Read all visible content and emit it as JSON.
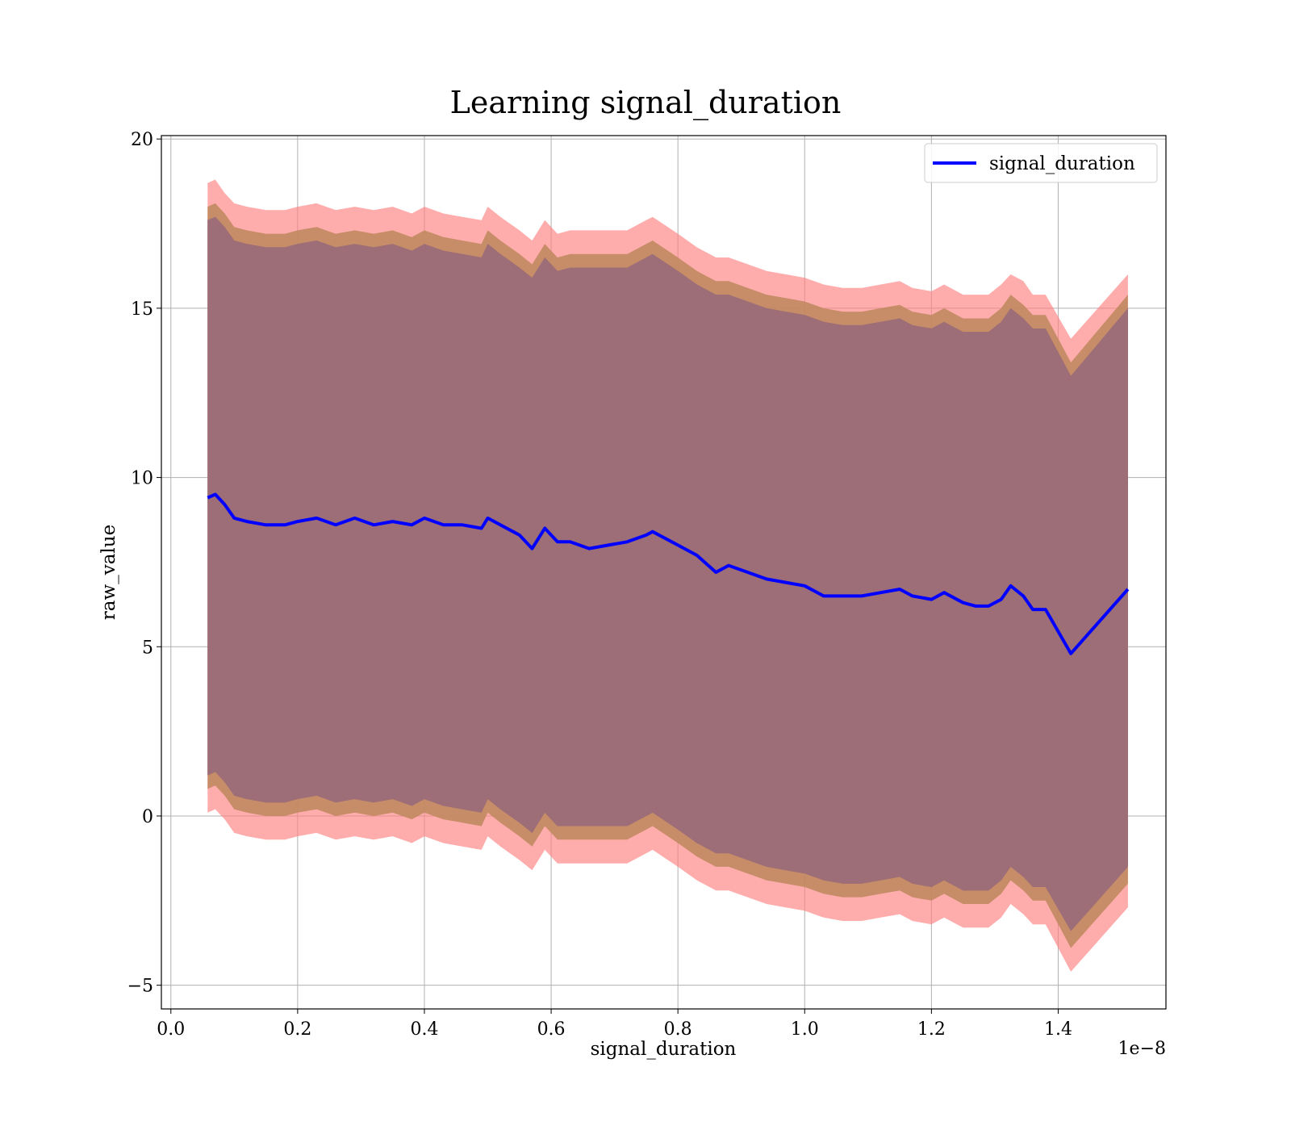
{
  "chart_data": {
    "type": "line",
    "title": "Learning signal_duration",
    "xlabel": "signal_duration",
    "ylabel": "raw_value",
    "x_offset_label": "1e−8",
    "xlim": [
      -0.015,
      1.57
    ],
    "ylim": [
      -5.7,
      20.1
    ],
    "x_ticks": [
      0.0,
      0.2,
      0.4,
      0.6,
      0.8,
      1.0,
      1.2,
      1.4
    ],
    "x_tick_labels": [
      "0.0",
      "0.2",
      "0.4",
      "0.6",
      "0.8",
      "1.0",
      "1.2",
      "1.4"
    ],
    "y_ticks": [
      -5,
      0,
      5,
      10,
      15,
      20
    ],
    "y_tick_labels": [
      "−5",
      "0",
      "5",
      "10",
      "15",
      "20"
    ],
    "grid": true,
    "legend_position": "top-right",
    "colors": {
      "line": "#0000ff",
      "band_outer": "#ff8080",
      "band_middle": "#c08a60",
      "band_inner": "#8a6078",
      "band_core": "#a07078"
    },
    "series": [
      {
        "name": "signal_duration",
        "x": [
          0.058,
          0.07,
          0.085,
          0.1,
          0.12,
          0.15,
          0.18,
          0.2,
          0.23,
          0.26,
          0.29,
          0.32,
          0.35,
          0.38,
          0.4,
          0.43,
          0.46,
          0.49,
          0.5,
          0.52,
          0.55,
          0.57,
          0.59,
          0.61,
          0.63,
          0.66,
          0.69,
          0.72,
          0.75,
          0.76,
          0.8,
          0.83,
          0.86,
          0.88,
          0.91,
          0.94,
          0.97,
          1.0,
          1.03,
          1.06,
          1.09,
          1.12,
          1.15,
          1.17,
          1.2,
          1.22,
          1.25,
          1.27,
          1.29,
          1.31,
          1.325,
          1.345,
          1.36,
          1.38,
          1.42,
          1.51
        ],
        "y": [
          9.4,
          9.5,
          9.2,
          8.8,
          8.7,
          8.6,
          8.6,
          8.7,
          8.8,
          8.6,
          8.8,
          8.6,
          8.7,
          8.6,
          8.8,
          8.6,
          8.6,
          8.5,
          8.8,
          8.6,
          8.3,
          7.9,
          8.5,
          8.1,
          8.1,
          7.9,
          8.0,
          8.1,
          8.3,
          8.4,
          8.0,
          7.7,
          7.2,
          7.4,
          7.2,
          7.0,
          6.9,
          6.8,
          6.5,
          6.5,
          6.5,
          6.6,
          6.7,
          6.5,
          6.4,
          6.6,
          6.3,
          6.2,
          6.2,
          6.4,
          6.8,
          6.5,
          6.1,
          6.1,
          4.8,
          6.7
        ]
      }
    ],
    "bands": {
      "outer_upper": [
        18.7,
        18.8,
        18.4,
        18.1,
        18.0,
        17.9,
        17.9,
        18.0,
        18.1,
        17.9,
        18.0,
        17.9,
        18.0,
        17.8,
        18.0,
        17.8,
        17.7,
        17.6,
        18.0,
        17.7,
        17.3,
        17.0,
        17.6,
        17.2,
        17.3,
        17.3,
        17.3,
        17.3,
        17.6,
        17.7,
        17.2,
        16.8,
        16.5,
        16.5,
        16.3,
        16.1,
        16.0,
        15.9,
        15.7,
        15.6,
        15.6,
        15.7,
        15.8,
        15.6,
        15.5,
        15.7,
        15.4,
        15.4,
        15.4,
        15.7,
        16.0,
        15.8,
        15.4,
        15.4,
        14.1,
        16.0
      ],
      "middle_upper": [
        18.0,
        18.1,
        17.8,
        17.4,
        17.3,
        17.2,
        17.2,
        17.3,
        17.4,
        17.2,
        17.3,
        17.2,
        17.3,
        17.1,
        17.3,
        17.1,
        17.0,
        16.9,
        17.3,
        17.0,
        16.6,
        16.3,
        16.9,
        16.5,
        16.6,
        16.6,
        16.6,
        16.6,
        16.9,
        17.0,
        16.5,
        16.1,
        15.8,
        15.8,
        15.6,
        15.4,
        15.3,
        15.2,
        15.0,
        14.9,
        14.9,
        15.0,
        15.1,
        14.9,
        14.8,
        15.0,
        14.7,
        14.7,
        14.7,
        15.0,
        15.4,
        15.1,
        14.8,
        14.8,
        13.4,
        15.4
      ],
      "inner_upper": [
        17.6,
        17.7,
        17.4,
        17.0,
        16.9,
        16.8,
        16.8,
        16.9,
        17.0,
        16.8,
        16.9,
        16.8,
        16.9,
        16.7,
        16.9,
        16.7,
        16.6,
        16.5,
        16.9,
        16.6,
        16.2,
        15.9,
        16.5,
        16.1,
        16.2,
        16.2,
        16.2,
        16.2,
        16.5,
        16.6,
        16.1,
        15.7,
        15.4,
        15.4,
        15.2,
        15.0,
        14.9,
        14.8,
        14.6,
        14.5,
        14.5,
        14.6,
        14.7,
        14.5,
        14.4,
        14.6,
        14.3,
        14.3,
        14.3,
        14.6,
        15.0,
        14.7,
        14.4,
        14.4,
        13.0,
        15.0
      ],
      "inner_lower": [
        1.2,
        1.3,
        1.0,
        0.6,
        0.5,
        0.4,
        0.4,
        0.5,
        0.6,
        0.4,
        0.5,
        0.4,
        0.5,
        0.3,
        0.5,
        0.3,
        0.2,
        0.1,
        0.5,
        0.2,
        -0.2,
        -0.5,
        0.1,
        -0.3,
        -0.3,
        -0.3,
        -0.3,
        -0.3,
        0.0,
        0.1,
        -0.4,
        -0.8,
        -1.1,
        -1.1,
        -1.3,
        -1.5,
        -1.6,
        -1.7,
        -1.9,
        -2.0,
        -2.0,
        -1.9,
        -1.8,
        -2.0,
        -2.1,
        -1.9,
        -2.2,
        -2.2,
        -2.2,
        -1.9,
        -1.5,
        -1.8,
        -2.1,
        -2.1,
        -3.4,
        -1.5
      ],
      "middle_lower": [
        0.8,
        0.9,
        0.6,
        0.2,
        0.1,
        0.0,
        0.0,
        0.1,
        0.2,
        0.0,
        0.1,
        0.0,
        0.1,
        -0.1,
        0.1,
        -0.1,
        -0.2,
        -0.3,
        0.1,
        -0.2,
        -0.6,
        -0.9,
        -0.3,
        -0.7,
        -0.7,
        -0.7,
        -0.7,
        -0.7,
        -0.4,
        -0.3,
        -0.8,
        -1.2,
        -1.5,
        -1.5,
        -1.7,
        -1.9,
        -2.0,
        -2.1,
        -2.3,
        -2.4,
        -2.4,
        -2.3,
        -2.2,
        -2.4,
        -2.5,
        -2.3,
        -2.6,
        -2.6,
        -2.6,
        -2.3,
        -1.9,
        -2.2,
        -2.5,
        -2.5,
        -3.9,
        -2.0
      ],
      "outer_lower": [
        0.1,
        0.2,
        -0.1,
        -0.5,
        -0.6,
        -0.7,
        -0.7,
        -0.6,
        -0.5,
        -0.7,
        -0.6,
        -0.7,
        -0.6,
        -0.8,
        -0.6,
        -0.8,
        -0.9,
        -1.0,
        -0.6,
        -0.9,
        -1.3,
        -1.6,
        -1.0,
        -1.4,
        -1.4,
        -1.4,
        -1.4,
        -1.4,
        -1.1,
        -1.0,
        -1.5,
        -1.9,
        -2.2,
        -2.2,
        -2.4,
        -2.6,
        -2.7,
        -2.8,
        -3.0,
        -3.1,
        -3.1,
        -3.0,
        -2.9,
        -3.1,
        -3.2,
        -3.0,
        -3.3,
        -3.3,
        -3.3,
        -3.0,
        -2.6,
        -2.9,
        -3.2,
        -3.2,
        -4.6,
        -2.7
      ]
    }
  }
}
